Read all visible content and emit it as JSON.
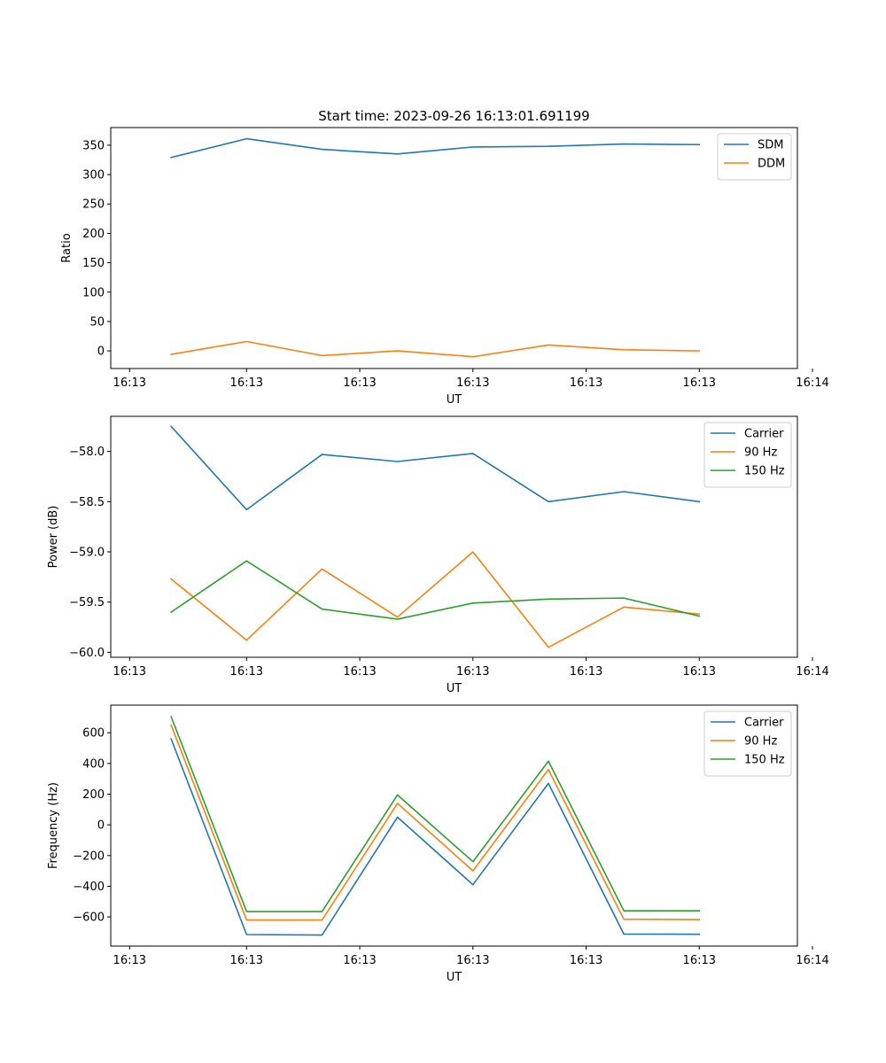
{
  "chart_data": [
    {
      "type": "line",
      "title": "Start time: 2023-09-26 16:13:01.691199",
      "xlabel": "UT",
      "ylabel": "Ratio",
      "x": [
        1,
        2,
        3,
        4,
        5,
        6,
        7,
        8
      ],
      "xlim": [
        0.2,
        9.3
      ],
      "xticks": [
        0.45,
        2,
        3.5,
        5,
        6.5,
        8,
        9.5
      ],
      "xtick_labels": [
        "16:13",
        "16:13",
        "16:13",
        "16:13",
        "16:13",
        "16:13",
        "16:14"
      ],
      "ylim": [
        -30,
        380
      ],
      "yticks": [
        0,
        50,
        100,
        150,
        200,
        250,
        300,
        350
      ],
      "ytick_labels": [
        "0",
        "50",
        "100",
        "150",
        "200",
        "250",
        "300",
        "350"
      ],
      "legend_loc": "upper right",
      "series": [
        {
          "name": "SDM",
          "color": "#1f77b4",
          "values": [
            329,
            361,
            343,
            335,
            347,
            348,
            352,
            351
          ]
        },
        {
          "name": "DDM",
          "color": "#ff7f0e",
          "values": [
            -6,
            16,
            -8,
            0,
            -10,
            10,
            2,
            0
          ]
        }
      ]
    },
    {
      "type": "line",
      "title": "",
      "xlabel": "UT",
      "ylabel": "Power (dB)",
      "x": [
        1,
        2,
        3,
        4,
        5,
        6,
        7,
        8
      ],
      "xlim": [
        0.2,
        9.3
      ],
      "xticks": [
        0.45,
        2,
        3.5,
        5,
        6.5,
        8,
        9.5
      ],
      "xtick_labels": [
        "16:13",
        "16:13",
        "16:13",
        "16:13",
        "16:13",
        "16:13",
        "16:14"
      ],
      "ylim": [
        -60.05,
        -57.65
      ],
      "yticks": [
        -60.0,
        -59.5,
        -59.0,
        -58.5,
        -58.0
      ],
      "ytick_labels": [
        "−60.0",
        "−59.5",
        "−59.0",
        "−58.5",
        "−58.0"
      ],
      "legend_loc": "upper right",
      "series": [
        {
          "name": "Carrier",
          "color": "#1f77b4",
          "values": [
            -57.75,
            -58.58,
            -58.03,
            -58.1,
            -58.02,
            -58.5,
            -58.4,
            -58.5
          ]
        },
        {
          "name": "90 Hz",
          "color": "#ff7f0e",
          "values": [
            -59.27,
            -59.88,
            -59.17,
            -59.65,
            -59.0,
            -59.95,
            -59.55,
            -59.62
          ]
        },
        {
          "name": "150 Hz",
          "color": "#2ca02c",
          "values": [
            -59.6,
            -59.09,
            -59.57,
            -59.67,
            -59.51,
            -59.47,
            -59.46,
            -59.64
          ]
        }
      ]
    },
    {
      "type": "line",
      "title": "",
      "xlabel": "UT",
      "ylabel": "Frequency (Hz)",
      "x": [
        1,
        2,
        3,
        4,
        5,
        6,
        7,
        8
      ],
      "xlim": [
        0.2,
        9.3
      ],
      "xticks": [
        0.45,
        2,
        3.5,
        5,
        6.5,
        8,
        9.5
      ],
      "xtick_labels": [
        "16:13",
        "16:13",
        "16:13",
        "16:13",
        "16:13",
        "16:13",
        "16:14"
      ],
      "ylim": [
        -790,
        780
      ],
      "yticks": [
        -600,
        -400,
        -200,
        0,
        200,
        400,
        600
      ],
      "ytick_labels": [
        "−600",
        "−400",
        "−200",
        "0",
        "200",
        "400",
        "600"
      ],
      "legend_loc": "upper right",
      "series": [
        {
          "name": "Carrier",
          "color": "#1f77b4",
          "values": [
            560,
            -715,
            -718,
            50,
            -390,
            270,
            -712,
            -713
          ]
        },
        {
          "name": "90 Hz",
          "color": "#ff7f0e",
          "values": [
            650,
            -620,
            -620,
            140,
            -300,
            360,
            -615,
            -617
          ]
        },
        {
          "name": "150 Hz",
          "color": "#2ca02c",
          "values": [
            705,
            -565,
            -565,
            195,
            -240,
            415,
            -560,
            -560
          ]
        }
      ]
    }
  ]
}
